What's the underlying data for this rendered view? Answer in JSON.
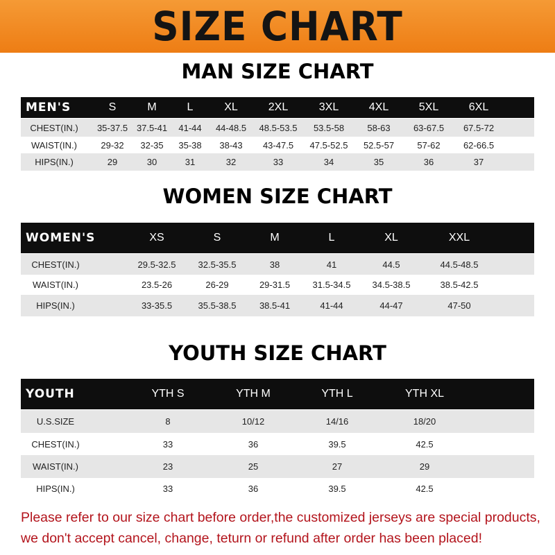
{
  "banner": {
    "title": "SIZE CHART",
    "background": "#f08a22"
  },
  "men": {
    "title": "MAN SIZE CHART",
    "header": "MEN'S",
    "sizes": [
      "S",
      "M",
      "L",
      "XL",
      "2XL",
      "3XL",
      "4XL",
      "5XL",
      "6XL"
    ],
    "rows": [
      {
        "label": "CHEST(IN.)",
        "values": [
          "35-37.5",
          "37.5-41",
          "41-44",
          "44-48.5",
          "48.5-53.5",
          "53.5-58",
          "58-63",
          "63-67.5",
          "67.5-72"
        ]
      },
      {
        "label": "WAIST(IN.)",
        "values": [
          "29-32",
          "32-35",
          "35-38",
          "38-43",
          "43-47.5",
          "47.5-52.5",
          "52.5-57",
          "57-62",
          "62-66.5"
        ]
      },
      {
        "label": "HIPS(IN.)",
        "values": [
          "29",
          "30",
          "31",
          "32",
          "33",
          "34",
          "35",
          "36",
          "37"
        ]
      }
    ]
  },
  "women": {
    "title": "WOMEN SIZE CHART",
    "header": "WOMEN'S",
    "sizes": [
      "XS",
      "S",
      "M",
      "L",
      "XL",
      "XXL"
    ],
    "rows": [
      {
        "label": "CHEST(IN.)",
        "values": [
          "29.5-32.5",
          "32.5-35.5",
          "38",
          "41",
          "44.5",
          "44.5-48.5"
        ]
      },
      {
        "label": "WAIST(IN.)",
        "values": [
          "23.5-26",
          "26-29",
          "29-31.5",
          "31.5-34.5",
          "34.5-38.5",
          "38.5-42.5"
        ]
      },
      {
        "label": "HIPS(IN.)",
        "values": [
          "33-35.5",
          "35.5-38.5",
          "38.5-41",
          "41-44",
          "44-47",
          "47-50"
        ]
      }
    ]
  },
  "youth": {
    "title": "YOUTH SIZE CHART",
    "header": "YOUTH",
    "sizes": [
      "YTH S",
      "YTH M",
      "YTH L",
      "YTH XL"
    ],
    "rows": [
      {
        "label": "U.S.SIZE",
        "values": [
          "8",
          "10/12",
          "14/16",
          "18/20"
        ]
      },
      {
        "label": "CHEST(IN.)",
        "values": [
          "33",
          "36",
          "39.5",
          "42.5"
        ]
      },
      {
        "label": "WAIST(IN.)",
        "values": [
          "23",
          "25",
          "27",
          "29"
        ]
      },
      {
        "label": "HIPS(IN.)",
        "values": [
          "33",
          "36",
          "39.5",
          "42.5"
        ]
      }
    ]
  },
  "notice": {
    "line1": "Please refer to our size chart before order,the customized jerseys are special products,",
    "line2": "we don't accept cancel, change, teturn or refund after order has been placed!",
    "color": "#b3141c"
  }
}
